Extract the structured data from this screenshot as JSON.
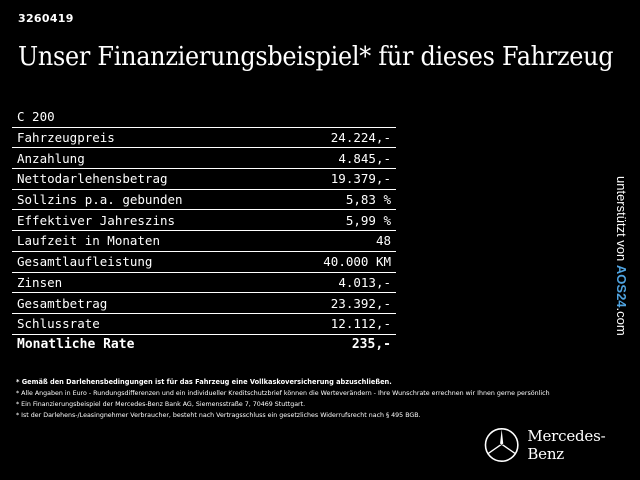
{
  "ad_id": "3260419",
  "headline": "Unser Finanzierungsbeispiel* für dieses Fahrzeug",
  "table": {
    "model": "C 200",
    "rows": [
      {
        "label": "Fahrzeugpreis",
        "value": "24.224,-"
      },
      {
        "label": "Anzahlung",
        "value": "4.845,-"
      },
      {
        "label": "Nettodarlehensbetrag",
        "value": "19.379,-"
      },
      {
        "label": "Sollzins p.a. gebunden",
        "value": "5,83 %"
      },
      {
        "label": "Effektiver Jahreszins",
        "value": "5,99 %"
      },
      {
        "label": "Laufzeit in Monaten",
        "value": "48"
      },
      {
        "label": "Gesamtlaufleistung",
        "value": "40.000 KM"
      },
      {
        "label": "Zinsen",
        "value": "4.013,-"
      },
      {
        "label": "Gesamtbetrag",
        "value": "23.392,-"
      },
      {
        "label": "Schlussrate",
        "value": "12.112,-"
      }
    ],
    "total": {
      "label": "Monatliche Rate",
      "value": "235,-"
    }
  },
  "side_credit": {
    "text": "unterstützt von",
    "brand": "AOS24",
    "suffix": ".com"
  },
  "footnotes": [
    "* Gemäß den Darlehensbedingungen ist für das Fahrzeug eine Vollkaskoversicherung abzuschließen.",
    "* Alle Angaben in Euro - Rundungsdifferenzen und ein individueller Kreditschutzbrief können die Werteverändern - Ihre Wunschrate errechnen wir Ihnen gerne persönlich",
    "* Ein Finanzierungsbeispiel der Mercedes-Benz Bank AG, Siemensstraße 7, 70469 Stuttgart.",
    "* Ist der Darlehens-/Leasingnehmer Verbraucher, besteht nach Vertragsschluss ein gesetzliches Widerrufsrecht nach § 495 BGB."
  ],
  "brand": {
    "name": "Mercedes-Benz",
    "icon": "mercedes-star-icon"
  }
}
